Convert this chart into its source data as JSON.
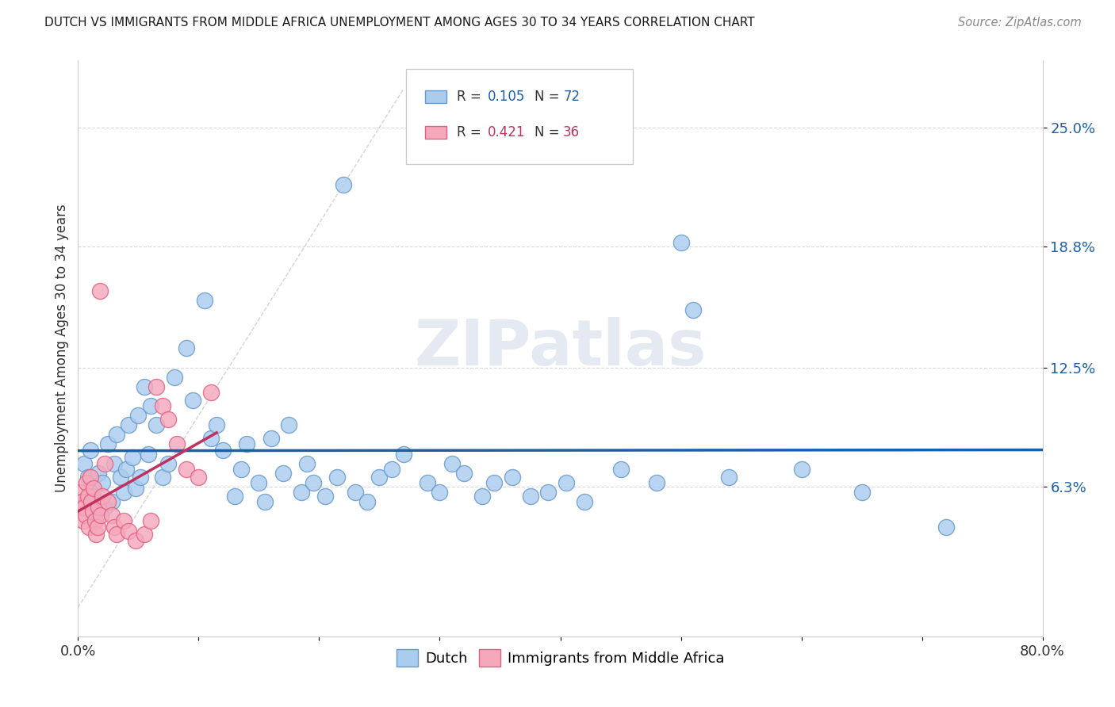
{
  "title": "DUTCH VS IMMIGRANTS FROM MIDDLE AFRICA UNEMPLOYMENT AMONG AGES 30 TO 34 YEARS CORRELATION CHART",
  "source": "Source: ZipAtlas.com",
  "ylabel": "Unemployment Among Ages 30 to 34 years",
  "xlim": [
    0.0,
    0.8
  ],
  "ylim": [
    -0.015,
    0.285
  ],
  "ytick_positions": [
    0.063,
    0.125,
    0.188,
    0.25
  ],
  "ytick_labels": [
    "6.3%",
    "12.5%",
    "18.8%",
    "25.0%"
  ],
  "dutch_color": "#aaccee",
  "dutch_edge_color": "#6699cc",
  "pink_color": "#f5a8bc",
  "pink_edge_color": "#e06080",
  "blue_line_color": "#1a5fa8",
  "red_line_color": "#c03060",
  "diag_line_color": "#cccccc",
  "watermark_text": "ZIPatlas",
  "watermark_color": "#d0d8e8",
  "background_color": "#ffffff",
  "grid_color": "#d8d8d8",
  "r_dutch": "0.105",
  "n_dutch": "72",
  "r_pink": "0.421",
  "n_pink": "36",
  "legend_label_dutch": "Dutch",
  "legend_label_pink": "Immigrants from Middle Africa"
}
